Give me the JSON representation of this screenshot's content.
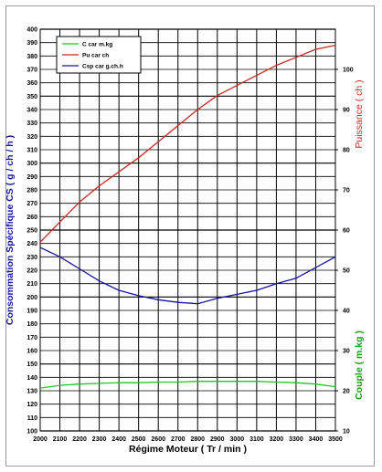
{
  "chart_data": {
    "type": "line",
    "xlabel": "Régime Moteur ( Tr / min )",
    "x": [
      2000,
      2100,
      2200,
      2300,
      2400,
      2500,
      2600,
      2700,
      2800,
      2900,
      3000,
      3100,
      3200,
      3300,
      3400,
      3500
    ],
    "x_ticks": [
      "2000",
      "2100",
      "2200",
      "2300",
      "2400",
      "2500",
      "2600",
      "2700",
      "2800",
      "2900",
      "3000",
      "3100",
      "3200",
      "3300",
      "3400",
      "3500"
    ],
    "xlim": [
      2000,
      3500
    ],
    "left_axis": {
      "label": "Consommation Spécifique CS ( g / ch / h )",
      "ylim": [
        100,
        400
      ],
      "ticks": [
        "100",
        "110",
        "120",
        "130",
        "140",
        "150",
        "160",
        "170",
        "180",
        "190",
        "200",
        "210",
        "220",
        "230",
        "240",
        "250",
        "260",
        "270",
        "280",
        "290",
        "300",
        "310",
        "320",
        "330",
        "340",
        "350",
        "360",
        "370",
        "380",
        "390",
        "400"
      ]
    },
    "right_axis_power": {
      "label": "Puissance ( ch )",
      "ylim": [
        10,
        110
      ],
      "ticks": [
        "10",
        "20",
        "30",
        "40",
        "50",
        "60",
        "70",
        "80",
        "90",
        "100"
      ]
    },
    "right_axis_torque": {
      "label": "Couple ( m.kg )"
    },
    "legend": {
      "placement": "top-left",
      "entries": [
        "C car m.kg",
        "Pu car ch",
        "Csp car g.ch.h"
      ]
    },
    "series": [
      {
        "name": "C car m.kg",
        "axis": "left",
        "color": "#1ec81e",
        "values": [
          132,
          134,
          135,
          135.5,
          136,
          136,
          136.5,
          136.5,
          137,
          137,
          137,
          137,
          136.5,
          136,
          135,
          133
        ]
      },
      {
        "name": "Pu car ch",
        "axis": "power",
        "color": "#c8281e",
        "values": [
          57,
          62,
          67,
          71,
          74.5,
          78,
          82,
          86,
          90,
          93.5,
          96,
          98.5,
          101,
          103,
          105,
          106
        ]
      },
      {
        "name": "Csp car g.ch.h",
        "axis": "left",
        "color": "#1414a0",
        "values": [
          237,
          230,
          221,
          212,
          205,
          201,
          198,
          196,
          195,
          199,
          202,
          205,
          210,
          214,
          222,
          230
        ]
      }
    ],
    "grid": true
  }
}
